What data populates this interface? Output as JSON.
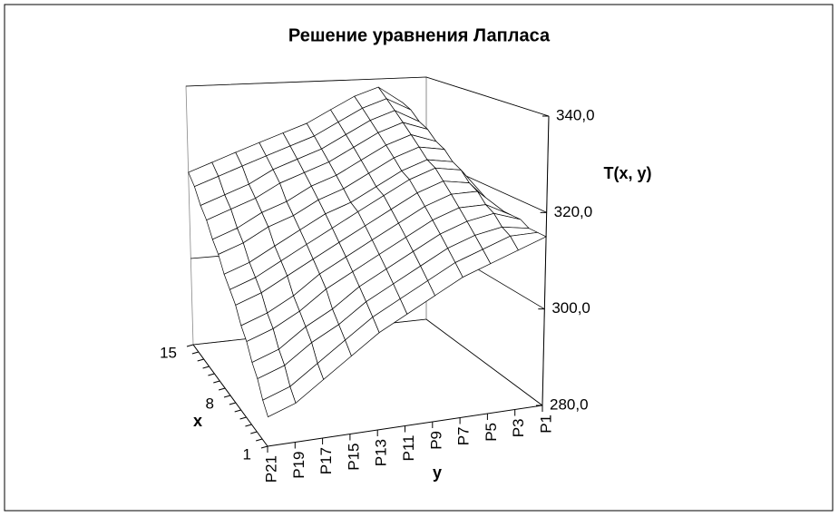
{
  "chart_data": {
    "type": "surface",
    "title": "Решение уравнения Лапласа",
    "x_label": "x",
    "y_label": "y",
    "z_label": "T(x, y)",
    "categories": [
      "P1",
      "P3",
      "P5",
      "P7",
      "P9",
      "P11",
      "P13",
      "P15",
      "P17",
      "P19",
      "P21"
    ],
    "series": [
      {
        "name": "1",
        "values": [
          315,
          313,
          311,
          309,
          306,
          303,
          300,
          296,
          292,
          288,
          286
        ]
      },
      {
        "name": null,
        "values": [
          315,
          315,
          313,
          311,
          308,
          305,
          302,
          298,
          294,
          290,
          288
        ]
      },
      {
        "name": null,
        "values": [
          315,
          316,
          315,
          313,
          310,
          307,
          304,
          300,
          297,
          293,
          291
        ]
      },
      {
        "name": null,
        "values": [
          316,
          318,
          317,
          315,
          312,
          309,
          306,
          302,
          299,
          295,
          293
        ]
      },
      {
        "name": null,
        "values": [
          316,
          319,
          319,
          317,
          314,
          311,
          308,
          305,
          301,
          298,
          296
        ]
      },
      {
        "name": null,
        "values": [
          316,
          321,
          321,
          319,
          316,
          313,
          310,
          307,
          303,
          300,
          298
        ]
      },
      {
        "name": null,
        "values": [
          316,
          322,
          323,
          321,
          318,
          315,
          312,
          309,
          306,
          303,
          301
        ]
      },
      {
        "name": "8",
        "values": [
          317,
          324,
          325,
          323,
          320,
          317,
          314,
          311,
          308,
          305,
          303
        ]
      },
      {
        "name": null,
        "values": [
          317,
          325,
          326,
          324,
          321,
          318,
          316,
          313,
          310,
          307,
          305
        ]
      },
      {
        "name": null,
        "values": [
          317,
          327,
          328,
          326,
          323,
          320,
          318,
          315,
          313,
          310,
          308
        ]
      },
      {
        "name": null,
        "values": [
          317,
          328,
          330,
          328,
          325,
          322,
          320,
          317,
          315,
          312,
          310
        ]
      },
      {
        "name": null,
        "values": [
          317,
          330,
          332,
          330,
          327,
          324,
          322,
          320,
          317,
          315,
          313
        ]
      },
      {
        "name": null,
        "values": [
          318,
          331,
          334,
          332,
          329,
          326,
          324,
          322,
          319,
          317,
          315
        ]
      },
      {
        "name": null,
        "values": [
          318,
          333,
          336,
          334,
          331,
          328,
          326,
          324,
          322,
          320,
          318
        ]
      },
      {
        "name": "15",
        "values": [
          318,
          334,
          338,
          336,
          333,
          330,
          328,
          326,
          324,
          322,
          320
        ]
      }
    ],
    "zlim": [
      280,
      340
    ],
    "zticks": [
      {
        "value": 280,
        "label": "280,0"
      },
      {
        "value": 300,
        "label": "300,0"
      },
      {
        "value": 320,
        "label": "320,0"
      },
      {
        "value": 340,
        "label": "340,0"
      }
    ],
    "grid": true,
    "color": "#ffffff",
    "line_color": "#000000"
  }
}
